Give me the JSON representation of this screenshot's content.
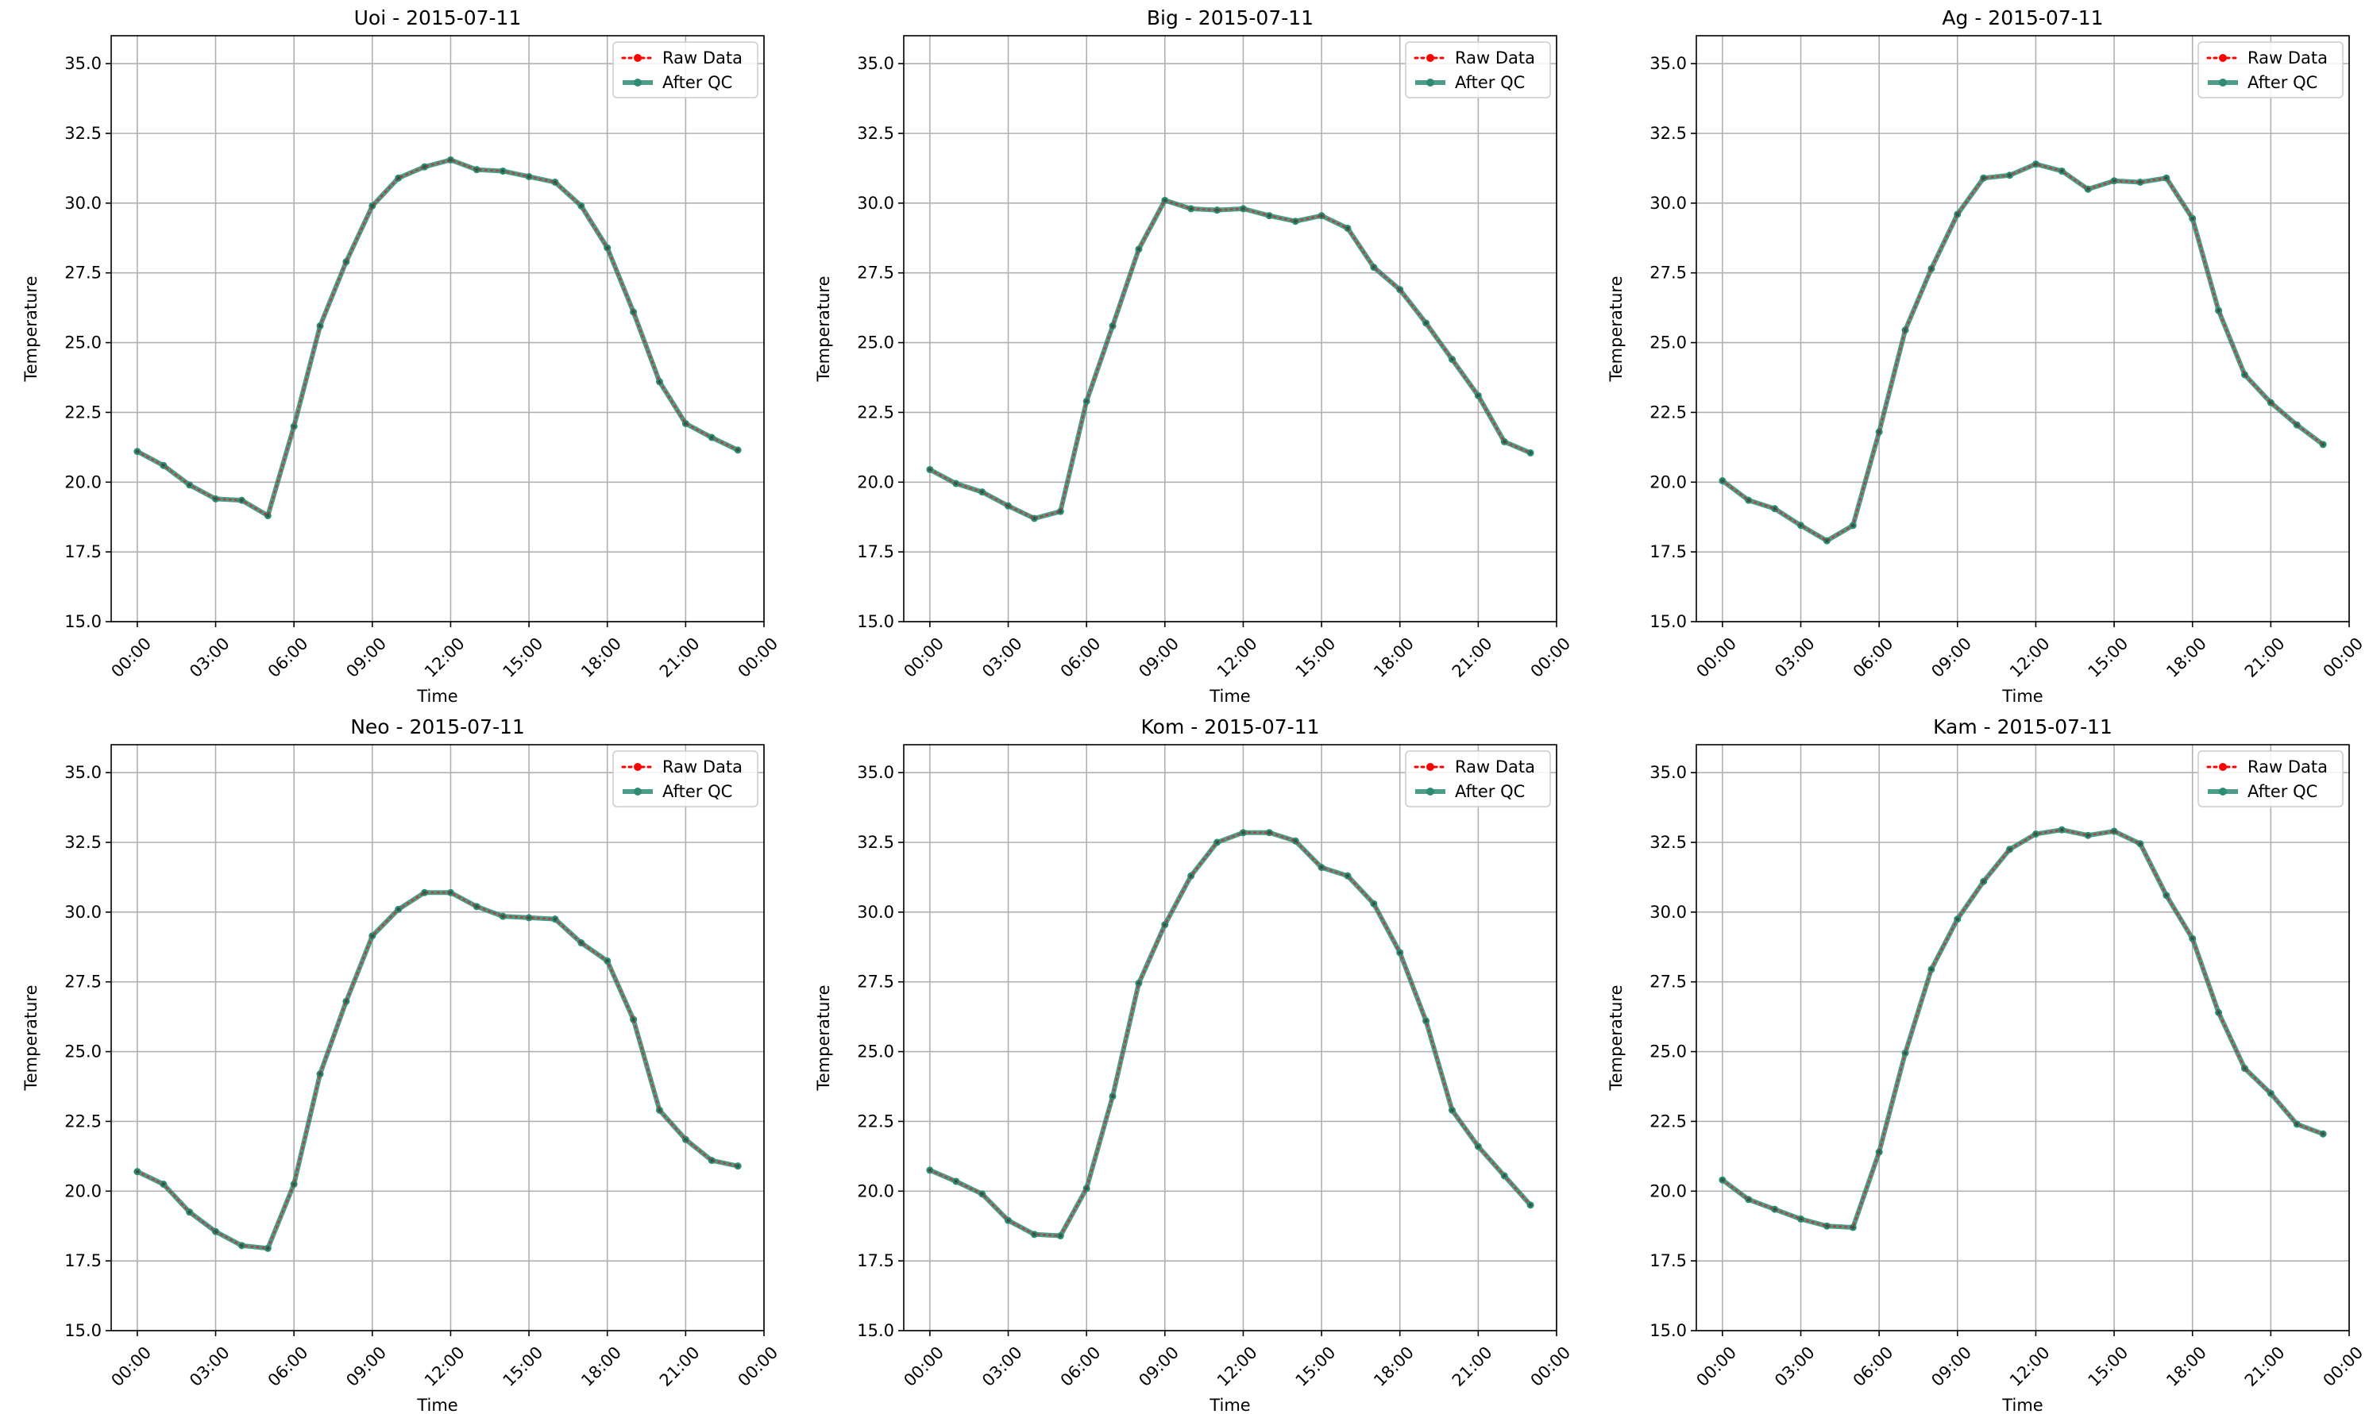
{
  "figure": {
    "background": "#ffffff",
    "rows": 2,
    "cols": 3
  },
  "styles": {
    "raw_color": "#ff0000",
    "qc_color": "#2e8b74",
    "grid_color": "#b0b0b0",
    "axis_color": "#000000"
  },
  "legend_labels": {
    "raw": "Raw Data",
    "qc": "After QC"
  },
  "chart_data": [
    {
      "type": "line",
      "title": "Uoi - 2015-07-11",
      "xlabel": "Time",
      "ylabel": "Temperature",
      "xlim": [
        -1,
        24
      ],
      "ylim": [
        15,
        36
      ],
      "x_ticks": [
        0,
        3,
        6,
        9,
        12,
        15,
        18,
        21,
        24
      ],
      "x_tick_labels": [
        "00:00",
        "03:00",
        "06:00",
        "09:00",
        "12:00",
        "15:00",
        "18:00",
        "21:00",
        "00:00"
      ],
      "y_ticks": [
        15.0,
        17.5,
        20.0,
        22.5,
        25.0,
        27.5,
        30.0,
        32.5,
        35.0
      ],
      "y_tick_labels": [
        "15.0",
        "17.5",
        "20.0",
        "22.5",
        "25.0",
        "27.5",
        "30.0",
        "32.5",
        "35.0"
      ],
      "grid": true,
      "legend_position": "top-right",
      "x": [
        0,
        1,
        2,
        3,
        4,
        5,
        6,
        7,
        8,
        9,
        10,
        11,
        12,
        13,
        14,
        15,
        16,
        17,
        18,
        19,
        20,
        21,
        22,
        23
      ],
      "series": [
        {
          "name": "Raw Data",
          "values": [
            21.1,
            20.6,
            19.9,
            19.4,
            19.35,
            18.8,
            22.0,
            25.6,
            27.9,
            29.9,
            30.9,
            31.3,
            31.55,
            31.2,
            31.15,
            30.95,
            30.75,
            29.9,
            28.4,
            26.1,
            23.6,
            22.1,
            21.6,
            21.15
          ]
        },
        {
          "name": "After QC",
          "values": [
            21.1,
            20.6,
            19.9,
            19.4,
            19.35,
            18.8,
            22.0,
            25.6,
            27.9,
            29.9,
            30.9,
            31.3,
            31.55,
            31.2,
            31.15,
            30.95,
            30.75,
            29.9,
            28.4,
            26.1,
            23.6,
            22.1,
            21.6,
            21.15
          ]
        }
      ]
    },
    {
      "type": "line",
      "title": "Big - 2015-07-11",
      "xlabel": "Time",
      "ylabel": "Temperature",
      "xlim": [
        -1,
        24
      ],
      "ylim": [
        15,
        36
      ],
      "x_ticks": [
        0,
        3,
        6,
        9,
        12,
        15,
        18,
        21,
        24
      ],
      "x_tick_labels": [
        "00:00",
        "03:00",
        "06:00",
        "09:00",
        "12:00",
        "15:00",
        "18:00",
        "21:00",
        "00:00"
      ],
      "y_ticks": [
        15.0,
        17.5,
        20.0,
        22.5,
        25.0,
        27.5,
        30.0,
        32.5,
        35.0
      ],
      "y_tick_labels": [
        "15.0",
        "17.5",
        "20.0",
        "22.5",
        "25.0",
        "27.5",
        "30.0",
        "32.5",
        "35.0"
      ],
      "grid": true,
      "legend_position": "top-right",
      "x": [
        0,
        1,
        2,
        3,
        4,
        5,
        6,
        7,
        8,
        9,
        10,
        11,
        12,
        13,
        14,
        15,
        16,
        17,
        18,
        19,
        20,
        21,
        22,
        23
      ],
      "series": [
        {
          "name": "Raw Data",
          "values": [
            20.45,
            19.95,
            19.65,
            19.15,
            18.7,
            18.95,
            22.9,
            25.6,
            28.35,
            30.1,
            29.8,
            29.75,
            29.8,
            29.55,
            29.35,
            29.55,
            29.1,
            27.7,
            26.9,
            25.7,
            24.4,
            23.1,
            21.45,
            21.05
          ]
        },
        {
          "name": "After QC",
          "values": [
            20.45,
            19.95,
            19.65,
            19.15,
            18.7,
            18.95,
            22.9,
            25.6,
            28.35,
            30.1,
            29.8,
            29.75,
            29.8,
            29.55,
            29.35,
            29.55,
            29.1,
            27.7,
            26.9,
            25.7,
            24.4,
            23.1,
            21.45,
            21.05
          ]
        }
      ]
    },
    {
      "type": "line",
      "title": "Ag - 2015-07-11",
      "xlabel": "Time",
      "ylabel": "Temperature",
      "xlim": [
        -1,
        24
      ],
      "ylim": [
        15,
        36
      ],
      "x_ticks": [
        0,
        3,
        6,
        9,
        12,
        15,
        18,
        21,
        24
      ],
      "x_tick_labels": [
        "00:00",
        "03:00",
        "06:00",
        "09:00",
        "12:00",
        "15:00",
        "18:00",
        "21:00",
        "00:00"
      ],
      "y_ticks": [
        15.0,
        17.5,
        20.0,
        22.5,
        25.0,
        27.5,
        30.0,
        32.5,
        35.0
      ],
      "y_tick_labels": [
        "15.0",
        "17.5",
        "20.0",
        "22.5",
        "25.0",
        "27.5",
        "30.0",
        "32.5",
        "35.0"
      ],
      "grid": true,
      "legend_position": "top-right",
      "x": [
        0,
        1,
        2,
        3,
        4,
        5,
        6,
        7,
        8,
        9,
        10,
        11,
        12,
        13,
        14,
        15,
        16,
        17,
        18,
        19,
        20,
        21,
        22,
        23
      ],
      "series": [
        {
          "name": "Raw Data",
          "values": [
            20.05,
            19.35,
            19.05,
            18.45,
            17.9,
            18.45,
            21.8,
            25.45,
            27.65,
            29.6,
            30.9,
            31.0,
            31.4,
            31.15,
            30.5,
            30.8,
            30.75,
            30.9,
            29.45,
            26.15,
            23.85,
            22.85,
            22.05,
            21.35
          ]
        },
        {
          "name": "After QC",
          "values": [
            20.05,
            19.35,
            19.05,
            18.45,
            17.9,
            18.45,
            21.8,
            25.45,
            27.65,
            29.6,
            30.9,
            31.0,
            31.4,
            31.15,
            30.5,
            30.8,
            30.75,
            30.9,
            29.45,
            26.15,
            23.85,
            22.85,
            22.05,
            21.35
          ]
        }
      ]
    },
    {
      "type": "line",
      "title": "Neo - 2015-07-11",
      "xlabel": "Time",
      "ylabel": "Temperature",
      "xlim": [
        -1,
        24
      ],
      "ylim": [
        15,
        36
      ],
      "x_ticks": [
        0,
        3,
        6,
        9,
        12,
        15,
        18,
        21,
        24
      ],
      "x_tick_labels": [
        "00:00",
        "03:00",
        "06:00",
        "09:00",
        "12:00",
        "15:00",
        "18:00",
        "21:00",
        "00:00"
      ],
      "y_ticks": [
        15.0,
        17.5,
        20.0,
        22.5,
        25.0,
        27.5,
        30.0,
        32.5,
        35.0
      ],
      "y_tick_labels": [
        "15.0",
        "17.5",
        "20.0",
        "22.5",
        "25.0",
        "27.5",
        "30.0",
        "32.5",
        "35.0"
      ],
      "grid": true,
      "legend_position": "top-right",
      "x": [
        0,
        1,
        2,
        3,
        4,
        5,
        6,
        7,
        8,
        9,
        10,
        11,
        12,
        13,
        14,
        15,
        16,
        17,
        18,
        19,
        20,
        21,
        22,
        23
      ],
      "series": [
        {
          "name": "Raw Data",
          "values": [
            20.7,
            20.25,
            19.25,
            18.55,
            18.05,
            17.95,
            20.25,
            24.2,
            26.8,
            29.15,
            30.1,
            30.7,
            30.7,
            30.2,
            29.85,
            29.8,
            29.75,
            28.9,
            28.25,
            26.15,
            22.9,
            21.85,
            21.1,
            20.9
          ]
        },
        {
          "name": "After QC",
          "values": [
            20.7,
            20.25,
            19.25,
            18.55,
            18.05,
            17.95,
            20.25,
            24.2,
            26.8,
            29.15,
            30.1,
            30.7,
            30.7,
            30.2,
            29.85,
            29.8,
            29.75,
            28.9,
            28.25,
            26.15,
            22.9,
            21.85,
            21.1,
            20.9
          ]
        }
      ]
    },
    {
      "type": "line",
      "title": "Kom - 2015-07-11",
      "xlabel": "Time",
      "ylabel": "Temperature",
      "xlim": [
        -1,
        24
      ],
      "ylim": [
        15,
        36
      ],
      "x_ticks": [
        0,
        3,
        6,
        9,
        12,
        15,
        18,
        21,
        24
      ],
      "x_tick_labels": [
        "00:00",
        "03:00",
        "06:00",
        "09:00",
        "12:00",
        "15:00",
        "18:00",
        "21:00",
        "00:00"
      ],
      "y_ticks": [
        15.0,
        17.5,
        20.0,
        22.5,
        25.0,
        27.5,
        30.0,
        32.5,
        35.0
      ],
      "y_tick_labels": [
        "15.0",
        "17.5",
        "20.0",
        "22.5",
        "25.0",
        "27.5",
        "30.0",
        "32.5",
        "35.0"
      ],
      "grid": true,
      "legend_position": "top-right",
      "x": [
        0,
        1,
        2,
        3,
        4,
        5,
        6,
        7,
        8,
        9,
        10,
        11,
        12,
        13,
        14,
        15,
        16,
        17,
        18,
        19,
        20,
        21,
        22,
        23
      ],
      "series": [
        {
          "name": "Raw Data",
          "values": [
            20.75,
            20.35,
            19.9,
            18.95,
            18.45,
            18.4,
            20.1,
            23.4,
            27.45,
            29.55,
            31.3,
            32.5,
            32.85,
            32.85,
            32.55,
            31.6,
            31.3,
            30.3,
            28.55,
            26.1,
            22.9,
            21.6,
            20.55,
            19.5
          ]
        },
        {
          "name": "After QC",
          "values": [
            20.75,
            20.35,
            19.9,
            18.95,
            18.45,
            18.4,
            20.1,
            23.4,
            27.45,
            29.55,
            31.3,
            32.5,
            32.85,
            32.85,
            32.55,
            31.6,
            31.3,
            30.3,
            28.55,
            26.1,
            22.9,
            21.6,
            20.55,
            19.5
          ]
        }
      ]
    },
    {
      "type": "line",
      "title": "Kam - 2015-07-11",
      "xlabel": "Time",
      "ylabel": "Temperature",
      "xlim": [
        -1,
        24
      ],
      "ylim": [
        15,
        36
      ],
      "x_ticks": [
        0,
        3,
        6,
        9,
        12,
        15,
        18,
        21,
        24
      ],
      "x_tick_labels": [
        "00:00",
        "03:00",
        "06:00",
        "09:00",
        "12:00",
        "15:00",
        "18:00",
        "21:00",
        "00:00"
      ],
      "y_ticks": [
        15.0,
        17.5,
        20.0,
        22.5,
        25.0,
        27.5,
        30.0,
        32.5,
        35.0
      ],
      "y_tick_labels": [
        "15.0",
        "17.5",
        "20.0",
        "22.5",
        "25.0",
        "27.5",
        "30.0",
        "32.5",
        "35.0"
      ],
      "grid": true,
      "legend_position": "top-right",
      "x": [
        0,
        1,
        2,
        3,
        4,
        5,
        6,
        7,
        8,
        9,
        10,
        11,
        12,
        13,
        14,
        15,
        16,
        17,
        18,
        19,
        20,
        21,
        22,
        23
      ],
      "series": [
        {
          "name": "Raw Data",
          "values": [
            20.4,
            19.7,
            19.35,
            19.0,
            18.75,
            18.7,
            21.4,
            24.95,
            27.95,
            29.75,
            31.1,
            32.25,
            32.8,
            32.95,
            32.75,
            32.9,
            32.45,
            30.6,
            29.05,
            26.4,
            24.4,
            23.5,
            22.4,
            22.05
          ]
        },
        {
          "name": "After QC",
          "values": [
            20.4,
            19.7,
            19.35,
            19.0,
            18.75,
            18.7,
            21.4,
            24.95,
            27.95,
            29.75,
            31.1,
            32.25,
            32.8,
            32.95,
            32.75,
            32.9,
            32.45,
            30.6,
            29.05,
            26.4,
            24.4,
            23.5,
            22.4,
            22.05
          ]
        }
      ]
    }
  ]
}
